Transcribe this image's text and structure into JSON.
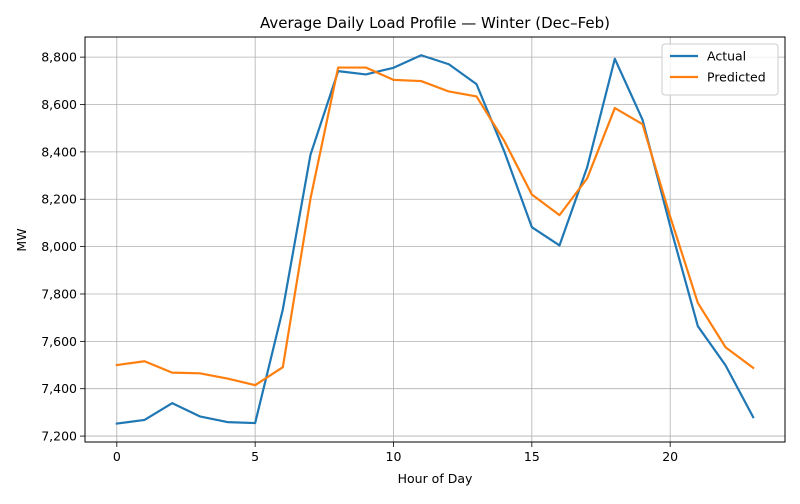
{
  "chart_data": {
    "type": "line",
    "title": "Average Daily Load Profile — Winter (Dec–Feb)",
    "xlabel": "Hour of Day",
    "ylabel": "MW",
    "x": [
      0,
      1,
      2,
      3,
      4,
      5,
      6,
      7,
      8,
      9,
      10,
      11,
      12,
      13,
      14,
      15,
      16,
      17,
      18,
      19,
      20,
      21,
      22,
      23
    ],
    "xlim": [
      -1.15,
      24.15
    ],
    "ylim": [
      7175,
      8885
    ],
    "x_ticks": [
      0,
      5,
      10,
      15,
      20
    ],
    "x_tick_labels": [
      "0",
      "5",
      "10",
      "15",
      "20"
    ],
    "y_ticks": [
      7200,
      7400,
      7600,
      7800,
      8000,
      8200,
      8400,
      8600,
      8800
    ],
    "y_tick_labels": [
      "7,200",
      "7,400",
      "7,600",
      "7,800",
      "8,000",
      "8,200",
      "8,400",
      "8,600",
      "8,800"
    ],
    "grid": true,
    "legend_position": "top-right",
    "series": [
      {
        "name": "Actual",
        "color": "#1f77b4",
        "values": [
          7253,
          7268,
          7339,
          7283,
          7259,
          7255,
          7735,
          8388,
          8741,
          8727,
          8755,
          8808,
          8770,
          8686,
          8403,
          8082,
          8005,
          8335,
          8793,
          8536,
          8087,
          7664,
          7499,
          7280
        ]
      },
      {
        "name": "Predicted",
        "color": "#ff7f0e",
        "values": [
          7500,
          7516,
          7468,
          7465,
          7443,
          7415,
          7491,
          8203,
          8756,
          8756,
          8704,
          8699,
          8655,
          8634,
          8447,
          8220,
          8133,
          8288,
          8585,
          8517,
          8127,
          7762,
          7575,
          7488
        ]
      }
    ]
  }
}
